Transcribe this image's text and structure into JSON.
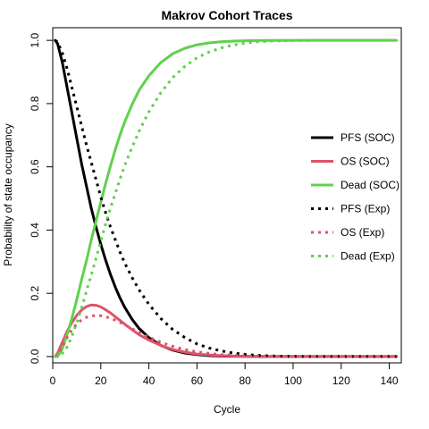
{
  "chart_data": {
    "type": "line",
    "title": "Makrov Cohort Traces",
    "xlabel": "Cycle",
    "ylabel": "Probability of state occupancy",
    "xlim": [
      0,
      145
    ],
    "ylim": [
      -0.02,
      1.04
    ],
    "xticks": [
      0,
      20,
      40,
      60,
      80,
      100,
      120,
      140
    ],
    "yticks": [
      0.0,
      0.2,
      0.4,
      0.6,
      0.8,
      1.0
    ],
    "xtick_labels": [
      "0",
      "20",
      "40",
      "60",
      "80",
      "100",
      "120",
      "140"
    ],
    "ytick_labels": [
      "0.0",
      "0.2",
      "0.4",
      "0.6",
      "0.8",
      "1.0"
    ],
    "grid": false,
    "legend_position": "right",
    "x": [
      1,
      2,
      4,
      6,
      8,
      10,
      12,
      14,
      16,
      18,
      20,
      22,
      24,
      26,
      28,
      30,
      33,
      36,
      40,
      45,
      50,
      55,
      60,
      65,
      70,
      75,
      80,
      85,
      90,
      100,
      110,
      120,
      130,
      143
    ],
    "series": [
      {
        "name": "PFS (SOC)",
        "color": "#000000",
        "style": "solid",
        "values": [
          1.0,
          0.99,
          0.93,
          0.85,
          0.77,
          0.69,
          0.61,
          0.54,
          0.47,
          0.41,
          0.355,
          0.305,
          0.26,
          0.22,
          0.185,
          0.155,
          0.118,
          0.088,
          0.06,
          0.035,
          0.02,
          0.011,
          0.006,
          0.003,
          0.0015,
          0.0008,
          0.0004,
          0.0002,
          0.0001,
          0.0,
          0.0,
          0.0,
          0.0,
          0.0
        ]
      },
      {
        "name": "OS (SOC)",
        "color": "#df536b",
        "style": "solid",
        "values": [
          0.0,
          0.01,
          0.045,
          0.08,
          0.108,
          0.13,
          0.147,
          0.158,
          0.163,
          0.162,
          0.157,
          0.148,
          0.138,
          0.126,
          0.114,
          0.102,
          0.085,
          0.069,
          0.052,
          0.035,
          0.022,
          0.014,
          0.008,
          0.005,
          0.003,
          0.0015,
          0.001,
          0.0005,
          0.0002,
          0.0,
          0.0,
          0.0,
          0.0,
          0.0
        ]
      },
      {
        "name": "Dead (SOC)",
        "color": "#61d04f",
        "style": "solid",
        "values": [
          0.0,
          0.0,
          0.025,
          0.07,
          0.122,
          0.18,
          0.243,
          0.302,
          0.367,
          0.428,
          0.488,
          0.547,
          0.602,
          0.654,
          0.701,
          0.743,
          0.797,
          0.843,
          0.888,
          0.93,
          0.958,
          0.975,
          0.986,
          0.992,
          0.9955,
          0.9977,
          0.9986,
          0.9993,
          0.9997,
          1.0,
          1.0,
          1.0,
          1.0,
          1.0
        ]
      },
      {
        "name": "PFS (Exp)",
        "color": "#000000",
        "style": "dotted",
        "values": [
          1.0,
          0.995,
          0.96,
          0.91,
          0.85,
          0.79,
          0.73,
          0.67,
          0.615,
          0.56,
          0.505,
          0.455,
          0.41,
          0.37,
          0.33,
          0.295,
          0.25,
          0.21,
          0.165,
          0.12,
          0.085,
          0.06,
          0.04,
          0.027,
          0.018,
          0.011,
          0.007,
          0.004,
          0.002,
          0.0005,
          0.0,
          0.0,
          0.0,
          0.0
        ]
      },
      {
        "name": "OS (Exp)",
        "color": "#df536b",
        "style": "dotted",
        "values": [
          0.0,
          0.005,
          0.03,
          0.06,
          0.085,
          0.103,
          0.116,
          0.124,
          0.128,
          0.13,
          0.129,
          0.126,
          0.121,
          0.115,
          0.108,
          0.1,
          0.088,
          0.076,
          0.061,
          0.045,
          0.032,
          0.022,
          0.015,
          0.01,
          0.006,
          0.004,
          0.002,
          0.001,
          0.0005,
          0.0,
          0.0,
          0.0,
          0.0,
          0.0
        ]
      },
      {
        "name": "Dead (Exp)",
        "color": "#61d04f",
        "style": "dotted",
        "values": [
          0.0,
          0.0,
          0.01,
          0.03,
          0.065,
          0.107,
          0.154,
          0.206,
          0.257,
          0.31,
          0.366,
          0.419,
          0.469,
          0.515,
          0.562,
          0.605,
          0.662,
          0.714,
          0.774,
          0.835,
          0.883,
          0.918,
          0.945,
          0.963,
          0.976,
          0.985,
          0.991,
          0.995,
          0.9975,
          0.9995,
          1.0,
          1.0,
          1.0,
          1.0
        ]
      }
    ]
  }
}
